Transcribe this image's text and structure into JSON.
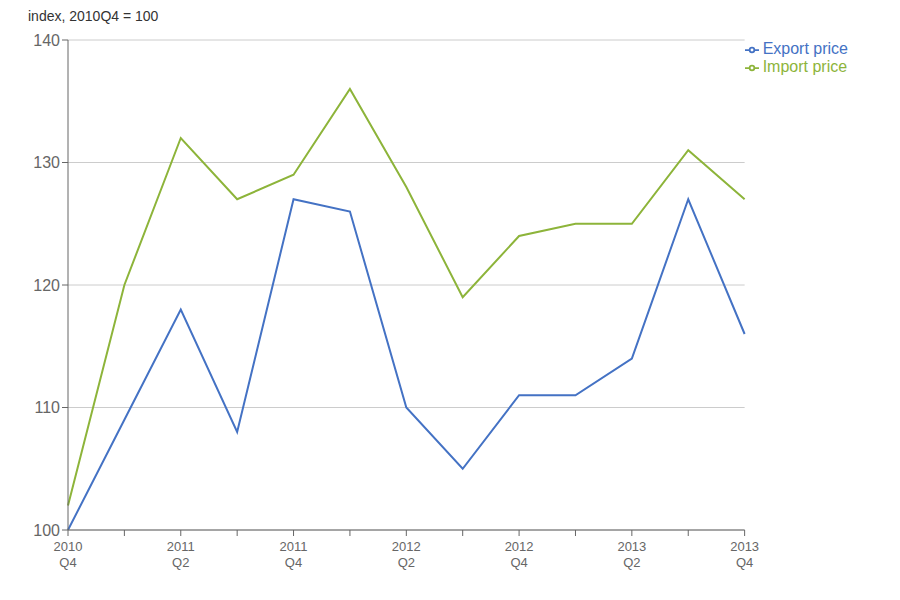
{
  "chart_data": {
    "type": "line",
    "ylabel": "index, 2010Q4 = 100",
    "categories": [
      "2010\nQ4",
      null,
      "2011\nQ2",
      null,
      "2011\nQ4",
      null,
      "2012\nQ2",
      null,
      "2012\nQ4",
      null,
      "2013\nQ2",
      null,
      "2013\nQ4"
    ],
    "series": [
      {
        "name": "Export price",
        "color": "#4472C4",
        "values": [
          100,
          109,
          118,
          108,
          127,
          126,
          110,
          105,
          111,
          111,
          114,
          127,
          116
        ]
      },
      {
        "name": "Import price",
        "color": "#8DB43A",
        "values": [
          102,
          120,
          132,
          127,
          129,
          136,
          128,
          119,
          124,
          125,
          125,
          131,
          127
        ]
      }
    ],
    "ylim": [
      100,
      140
    ],
    "yticks": [
      100,
      110,
      120,
      130,
      140
    ],
    "grid": true,
    "legend": "upper right"
  }
}
